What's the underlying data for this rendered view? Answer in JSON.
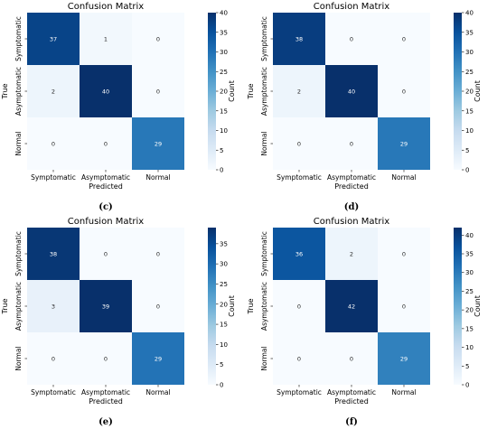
{
  "chart_data": [
    {
      "type": "heatmap",
      "panel_label": "(c)",
      "title": "Confusion Matrix",
      "xlabel": "Predicted",
      "ylabel": "True",
      "categories": [
        "Symptomatic",
        "Asymptomatic",
        "Normal"
      ],
      "matrix": [
        [
          37,
          1,
          0
        ],
        [
          2,
          40,
          0
        ],
        [
          0,
          0,
          29
        ]
      ],
      "colorbar": {
        "label": "Count",
        "range": [
          0,
          40
        ],
        "ticks": [
          0,
          5,
          10,
          15,
          20,
          25,
          30,
          35,
          40
        ]
      },
      "colormap": "Blues"
    },
    {
      "type": "heatmap",
      "panel_label": "(d)",
      "title": "Confusion Matrix",
      "xlabel": "Predicted",
      "ylabel": "True",
      "categories": [
        "Symptomatic",
        "Asymptomatic",
        "Normal"
      ],
      "matrix": [
        [
          38,
          0,
          0
        ],
        [
          2,
          40,
          0
        ],
        [
          0,
          0,
          29
        ]
      ],
      "colorbar": {
        "label": "Count",
        "range": [
          0,
          40
        ],
        "ticks": [
          0,
          5,
          10,
          15,
          20,
          25,
          30,
          35,
          40
        ]
      },
      "colormap": "Blues"
    },
    {
      "type": "heatmap",
      "panel_label": "(e)",
      "title": "Confusion Matrix",
      "xlabel": "Predicted",
      "ylabel": "True",
      "categories": [
        "Symptomatic",
        "Asymptomatic",
        "Normal"
      ],
      "matrix": [
        [
          38,
          0,
          0
        ],
        [
          3,
          39,
          0
        ],
        [
          0,
          0,
          29
        ]
      ],
      "colorbar": {
        "label": "Count",
        "range": [
          0,
          39
        ],
        "ticks": [
          0,
          5,
          10,
          15,
          20,
          25,
          30,
          35
        ]
      },
      "colormap": "Blues"
    },
    {
      "type": "heatmap",
      "panel_label": "(f)",
      "title": "Confusion Matrix",
      "xlabel": "Predicted",
      "ylabel": "True",
      "categories": [
        "Symptomatic",
        "Asymptomatic",
        "Normal"
      ],
      "matrix": [
        [
          36,
          2,
          0
        ],
        [
          0,
          42,
          0
        ],
        [
          0,
          0,
          29
        ]
      ],
      "colorbar": {
        "label": "Count",
        "range": [
          0,
          42
        ],
        "ticks": [
          0,
          5,
          10,
          15,
          20,
          25,
          30,
          35,
          40
        ]
      },
      "colormap": "Blues"
    }
  ]
}
